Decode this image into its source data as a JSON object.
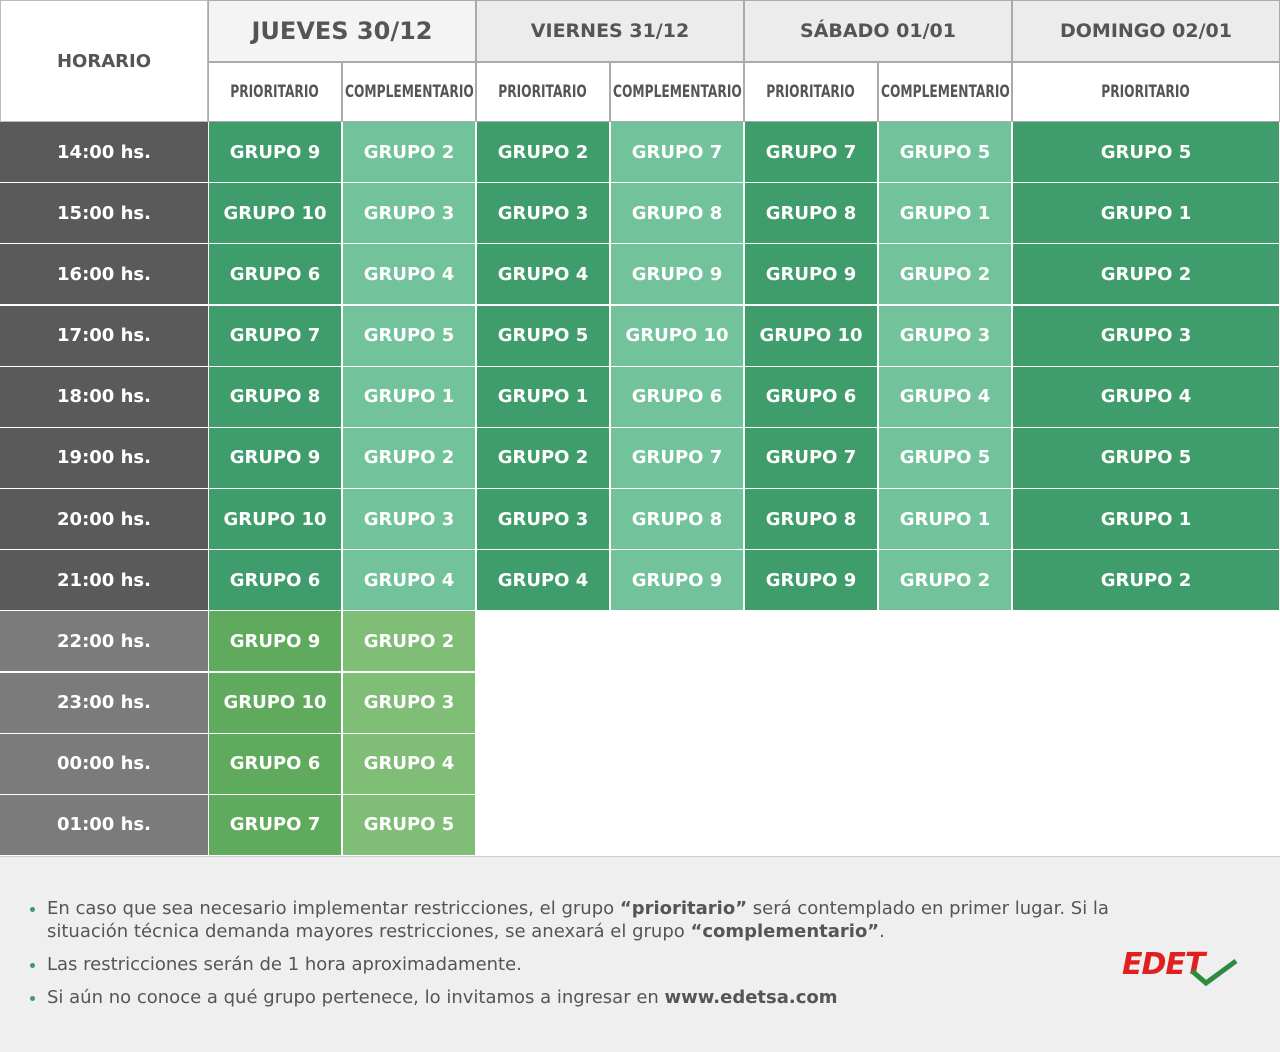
{
  "header": {
    "corner": "HORARIO",
    "days": [
      {
        "label": "JUEVES 30/12",
        "columns": [
          "PRIORITARIO",
          "COMPLEMENTARIO"
        ]
      },
      {
        "label": "VIERNES 31/12",
        "columns": [
          "PRIORITARIO",
          "COMPLEMENTARIO"
        ]
      },
      {
        "label": "SÁBADO 01/01",
        "columns": [
          "PRIORITARIO",
          "COMPLEMENTARIO"
        ]
      },
      {
        "label": "DOMINGO 02/01",
        "columns": [
          "PRIORITARIO"
        ]
      }
    ]
  },
  "rows": [
    {
      "time": "14:00 hs.",
      "cells": [
        "GRUPO 9",
        "GRUPO 2",
        "GRUPO 2",
        "GRUPO 7",
        "GRUPO 7",
        "GRUPO 5",
        "GRUPO 5"
      ]
    },
    {
      "time": "15:00 hs.",
      "cells": [
        "GRUPO 10",
        "GRUPO 3",
        "GRUPO 3",
        "GRUPO 8",
        "GRUPO 8",
        "GRUPO 1",
        "GRUPO 1"
      ]
    },
    {
      "time": "16:00 hs.",
      "cells": [
        "GRUPO 6",
        "GRUPO 4",
        "GRUPO 4",
        "GRUPO 9",
        "GRUPO 9",
        "GRUPO 2",
        "GRUPO 2"
      ]
    },
    {
      "time": "17:00 hs.",
      "cells": [
        "GRUPO 7",
        "GRUPO 5",
        "GRUPO 5",
        "GRUPO 10",
        "GRUPO 10",
        "GRUPO 3",
        "GRUPO 3"
      ]
    },
    {
      "time": "18:00 hs.",
      "cells": [
        "GRUPO 8",
        "GRUPO 1",
        "GRUPO 1",
        "GRUPO 6",
        "GRUPO 6",
        "GRUPO 4",
        "GRUPO 4"
      ]
    },
    {
      "time": "19:00 hs.",
      "cells": [
        "GRUPO 9",
        "GRUPO 2",
        "GRUPO 2",
        "GRUPO 7",
        "GRUPO 7",
        "GRUPO 5",
        "GRUPO 5"
      ]
    },
    {
      "time": "20:00 hs.",
      "cells": [
        "GRUPO 10",
        "GRUPO 3",
        "GRUPO 3",
        "GRUPO 8",
        "GRUPO 8",
        "GRUPO 1",
        "GRUPO 1"
      ]
    },
    {
      "time": "21:00 hs.",
      "cells": [
        "GRUPO 6",
        "GRUPO 4",
        "GRUPO 4",
        "GRUPO 9",
        "GRUPO 9",
        "GRUPO 2",
        "GRUPO 2"
      ]
    },
    {
      "time": "22:00 hs.",
      "cells": [
        "GRUPO 9",
        "GRUPO 2"
      ]
    },
    {
      "time": "23:00 hs.",
      "cells": [
        "GRUPO 10",
        "GRUPO 3"
      ]
    },
    {
      "time": "00:00 hs.",
      "cells": [
        "GRUPO 6",
        "GRUPO 4"
      ]
    },
    {
      "time": "01:00 hs.",
      "cells": [
        "GRUPO 7",
        "GRUPO 5"
      ]
    }
  ],
  "notes": [
    [
      "En caso que sea necesario implementar restricciones, el grupo ",
      "“prioritario”",
      " será contemplado en primer lugar. Si la situación técnica demanda mayores restricciones, se anexará el grupo ",
      "“complementario”",
      "."
    ],
    [
      "Las restricciones serán de 1 hora aproximadamente."
    ],
    [
      "Si aún no conoce a qué grupo pertenece, lo invitamos a ingresar en ",
      "www.edetsa.com"
    ]
  ],
  "logo": "EDET"
}
